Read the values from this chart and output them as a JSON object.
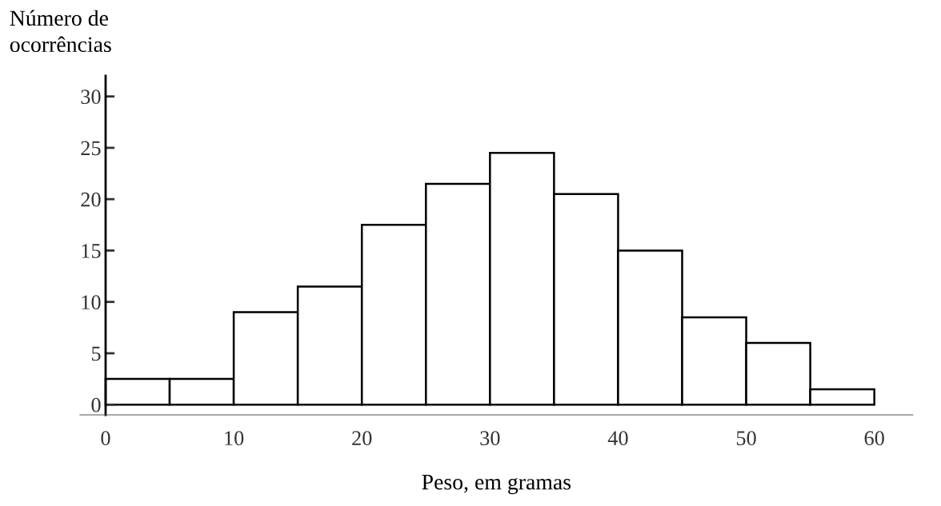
{
  "chart_data": {
    "type": "histogram",
    "xlabel": "Peso, em gramas",
    "ylabel": "Número de\nocorrências",
    "bins": [
      0,
      5,
      10,
      15,
      20,
      25,
      30,
      35,
      40,
      45,
      50,
      55,
      60
    ],
    "values": [
      2.5,
      2.5,
      9,
      11.5,
      17.5,
      21.5,
      24.5,
      20.5,
      15,
      8.5,
      6,
      1.5
    ],
    "color": "#ffffff",
    "xlim": [
      -2,
      63
    ],
    "ylim": [
      -1,
      32
    ],
    "xticks": [
      0,
      10,
      20,
      30,
      40,
      50,
      60
    ],
    "yticks": [
      0,
      5,
      10,
      15,
      20,
      25,
      30
    ],
    "grid": false,
    "legend": false
  }
}
